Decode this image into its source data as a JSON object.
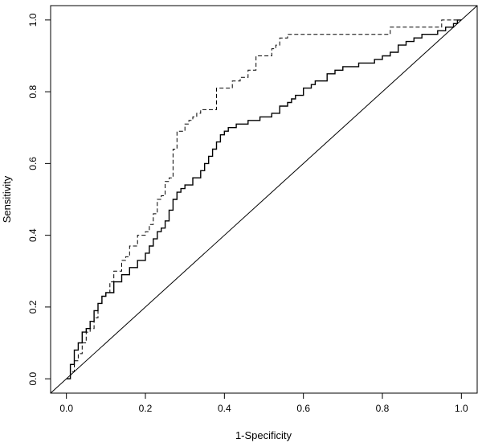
{
  "chart_data": {
    "type": "line",
    "xlabel": "1-Specificity",
    "ylabel": "Sensitivity",
    "xlim": [
      -0.04,
      1.04
    ],
    "ylim": [
      -0.04,
      1.04
    ],
    "xticks": [
      0.0,
      0.2,
      0.4,
      0.6,
      0.8,
      1.0
    ],
    "yticks": [
      0.0,
      0.2,
      0.4,
      0.6,
      0.8,
      1.0
    ],
    "x_tick_labels": [
      "0.0",
      "0.2",
      "0.4",
      "0.6",
      "0.8",
      "1.0"
    ],
    "y_tick_labels": [
      "0.0",
      "0.2",
      "0.4",
      "0.6",
      "0.8",
      "1.0"
    ],
    "grid": false,
    "legend": "none",
    "series": [
      {
        "style": "solid",
        "color": "#000000",
        "x": [
          0.0,
          0.01,
          0.02,
          0.03,
          0.04,
          0.05,
          0.06,
          0.07,
          0.08,
          0.09,
          0.1,
          0.12,
          0.14,
          0.16,
          0.18,
          0.2,
          0.21,
          0.22,
          0.23,
          0.24,
          0.25,
          0.26,
          0.27,
          0.28,
          0.29,
          0.3,
          0.32,
          0.34,
          0.35,
          0.36,
          0.37,
          0.38,
          0.39,
          0.4,
          0.41,
          0.42,
          0.43,
          0.44,
          0.46,
          0.48,
          0.49,
          0.5,
          0.52,
          0.54,
          0.56,
          0.57,
          0.58,
          0.6,
          0.62,
          0.63,
          0.64,
          0.66,
          0.68,
          0.7,
          0.72,
          0.74,
          0.76,
          0.78,
          0.8,
          0.82,
          0.84,
          0.86,
          0.88,
          0.9,
          0.92,
          0.94,
          0.95,
          0.96,
          0.97,
          0.98,
          0.99,
          1.0
        ],
        "y": [
          0.0,
          0.04,
          0.08,
          0.1,
          0.13,
          0.14,
          0.16,
          0.19,
          0.21,
          0.23,
          0.24,
          0.27,
          0.29,
          0.31,
          0.33,
          0.35,
          0.37,
          0.39,
          0.41,
          0.42,
          0.44,
          0.47,
          0.5,
          0.52,
          0.53,
          0.54,
          0.56,
          0.58,
          0.6,
          0.62,
          0.64,
          0.66,
          0.68,
          0.69,
          0.7,
          0.7,
          0.71,
          0.71,
          0.72,
          0.72,
          0.73,
          0.73,
          0.74,
          0.76,
          0.77,
          0.78,
          0.79,
          0.81,
          0.82,
          0.83,
          0.83,
          0.85,
          0.86,
          0.87,
          0.87,
          0.88,
          0.88,
          0.89,
          0.9,
          0.91,
          0.93,
          0.94,
          0.95,
          0.96,
          0.96,
          0.97,
          0.97,
          0.98,
          0.98,
          0.99,
          1.0,
          1.0
        ]
      },
      {
        "style": "dashed",
        "color": "#000000",
        "x": [
          0.0,
          0.01,
          0.02,
          0.03,
          0.04,
          0.05,
          0.06,
          0.07,
          0.08,
          0.09,
          0.1,
          0.11,
          0.12,
          0.13,
          0.14,
          0.15,
          0.16,
          0.18,
          0.2,
          0.21,
          0.22,
          0.23,
          0.24,
          0.25,
          0.26,
          0.27,
          0.28,
          0.29,
          0.3,
          0.31,
          0.32,
          0.33,
          0.34,
          0.35,
          0.36,
          0.37,
          0.38,
          0.39,
          0.4,
          0.42,
          0.44,
          0.46,
          0.48,
          0.5,
          0.52,
          0.53,
          0.54,
          0.55,
          0.56,
          0.6,
          0.7,
          0.8,
          0.82,
          0.9,
          0.94,
          0.95,
          0.98,
          1.0
        ],
        "y": [
          0.0,
          0.02,
          0.05,
          0.07,
          0.1,
          0.13,
          0.14,
          0.17,
          0.21,
          0.23,
          0.24,
          0.27,
          0.3,
          0.3,
          0.33,
          0.34,
          0.37,
          0.4,
          0.41,
          0.43,
          0.46,
          0.5,
          0.51,
          0.55,
          0.56,
          0.64,
          0.69,
          0.69,
          0.71,
          0.72,
          0.73,
          0.74,
          0.75,
          0.75,
          0.75,
          0.75,
          0.81,
          0.81,
          0.81,
          0.83,
          0.84,
          0.86,
          0.9,
          0.9,
          0.92,
          0.93,
          0.95,
          0.95,
          0.96,
          0.96,
          0.96,
          0.96,
          0.98,
          0.98,
          0.98,
          1.0,
          1.0,
          1.0
        ]
      },
      {
        "style": "diagonal",
        "color": "#000000",
        "x": [
          -0.04,
          1.04
        ],
        "y": [
          -0.04,
          1.04
        ]
      }
    ]
  }
}
